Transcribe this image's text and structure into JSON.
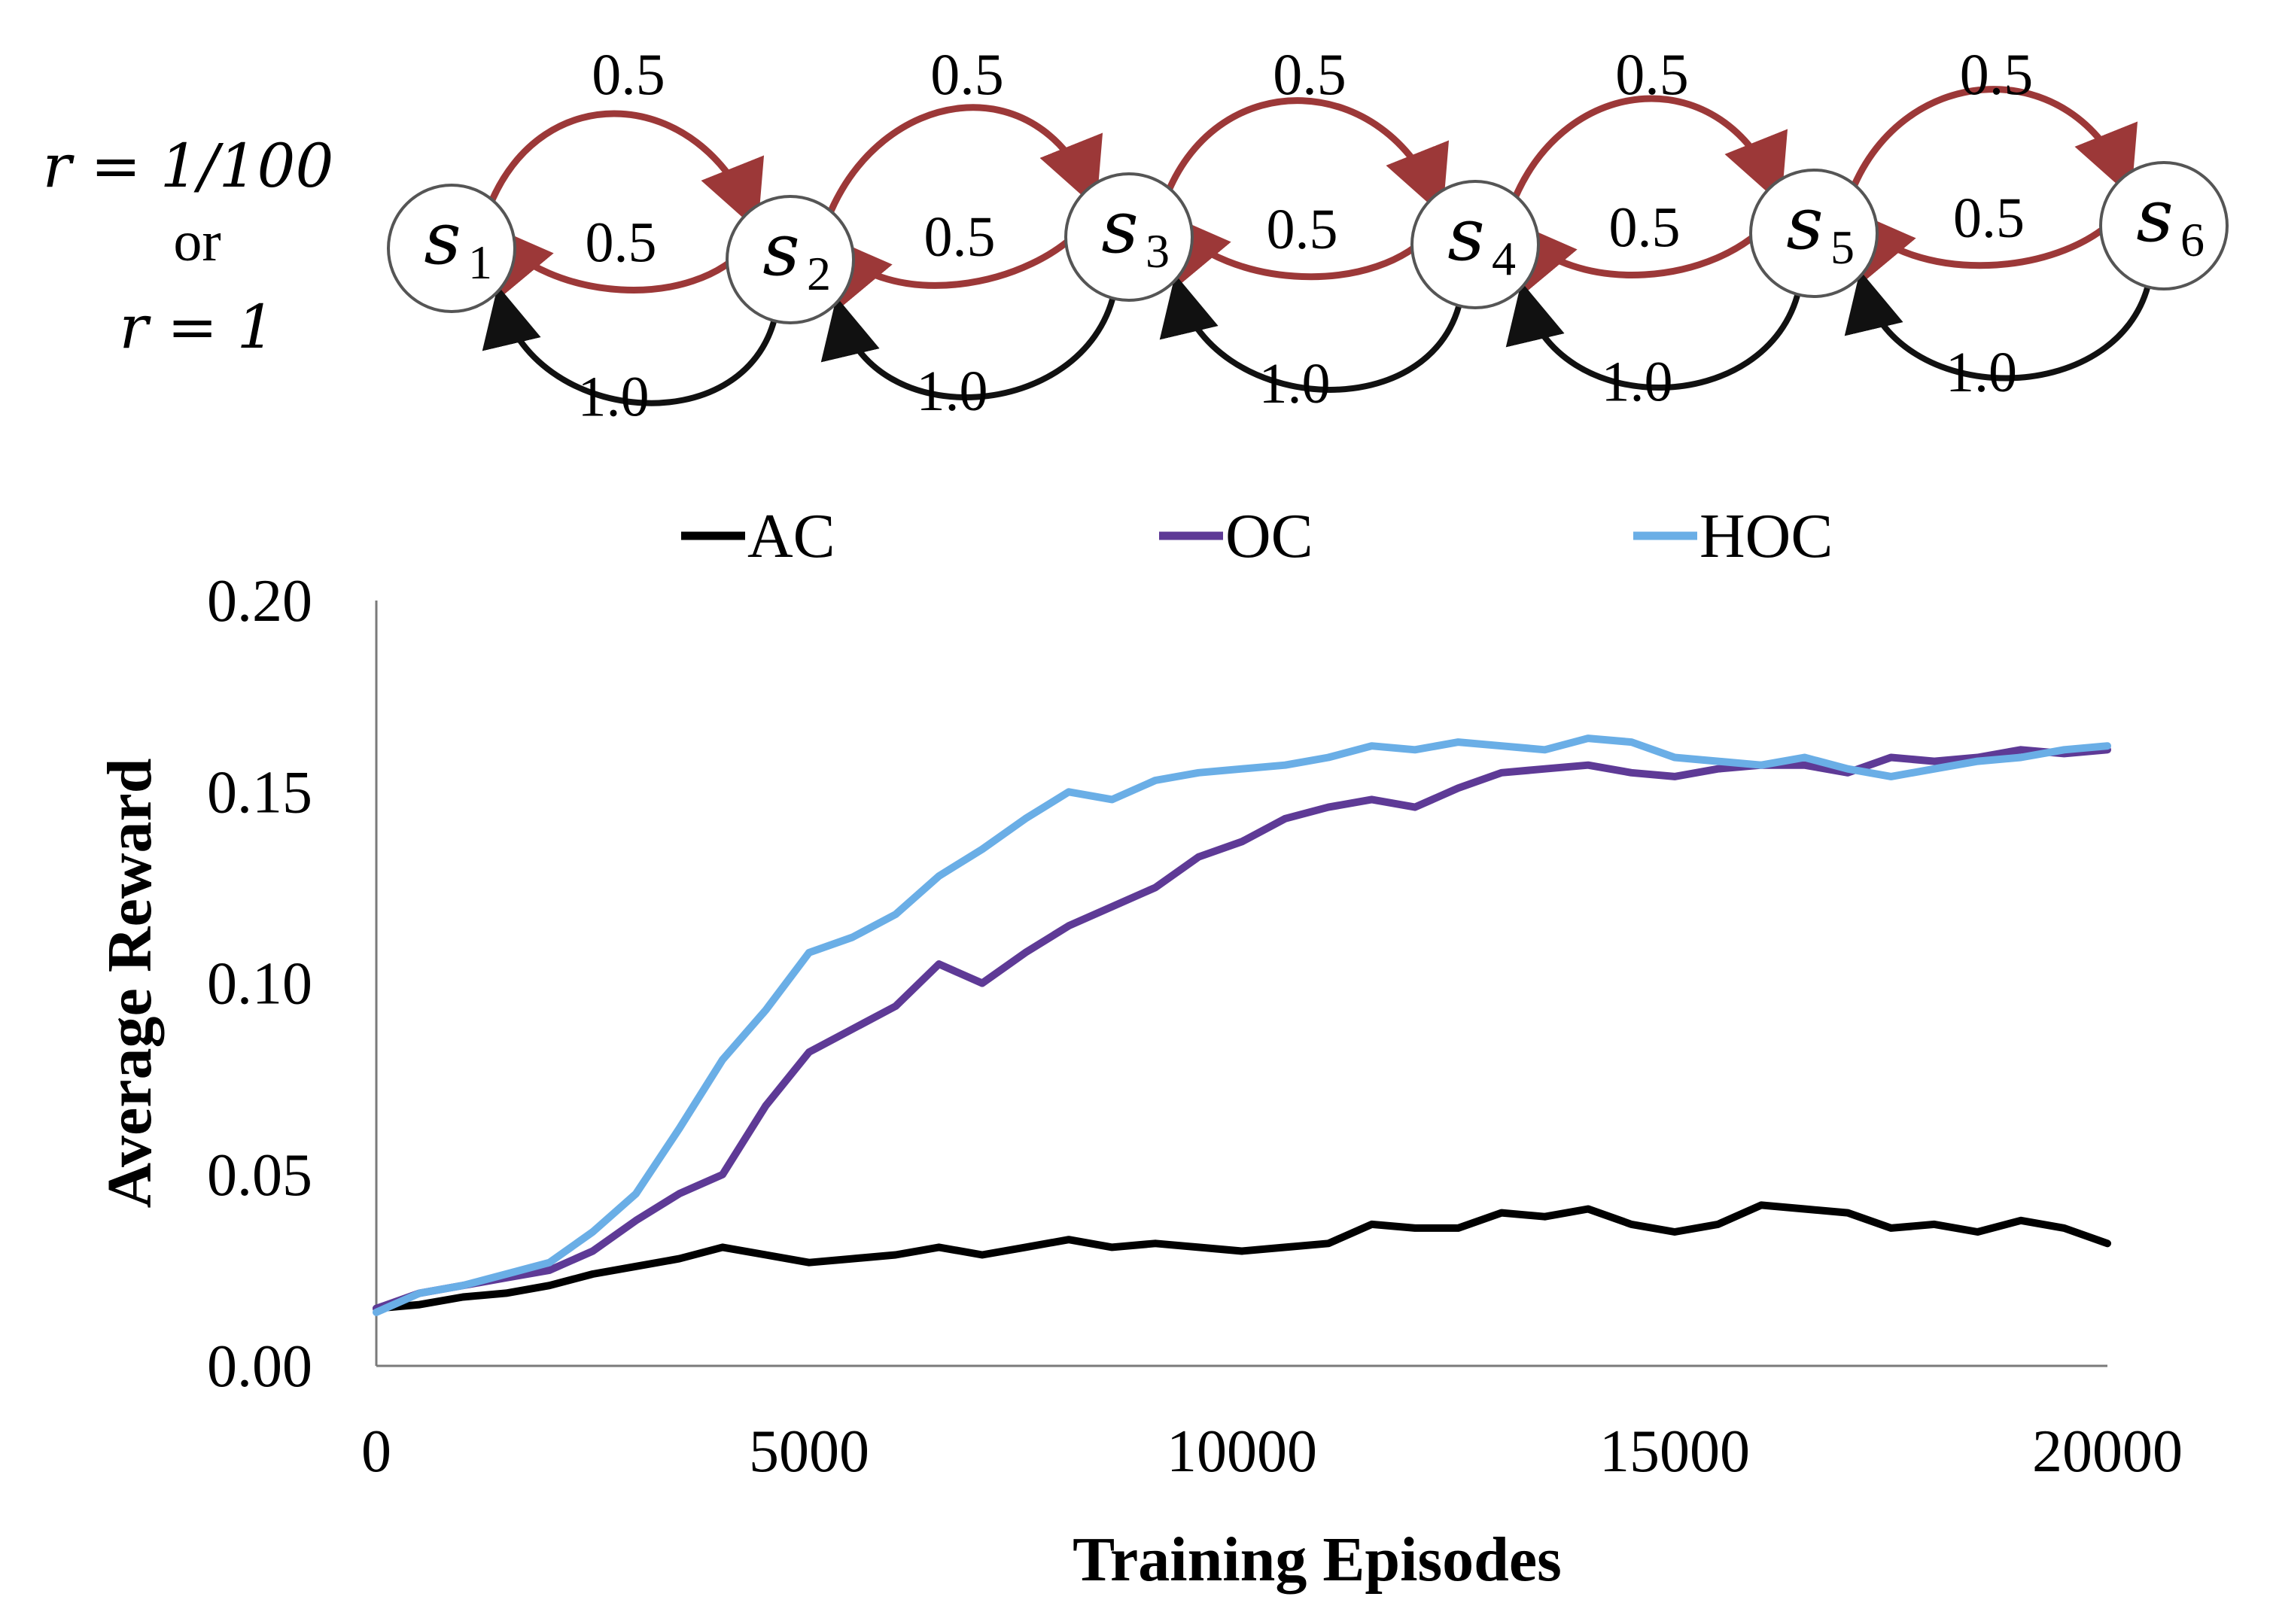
{
  "diagram": {
    "reward_line1": "r = 1/100",
    "reward_or": "or",
    "reward_line2": "r = 1",
    "states": [
      {
        "symbol": "s",
        "sub": "1"
      },
      {
        "symbol": "s",
        "sub": "2"
      },
      {
        "symbol": "s",
        "sub": "3"
      },
      {
        "symbol": "s",
        "sub": "4"
      },
      {
        "symbol": "s",
        "sub": "5"
      },
      {
        "symbol": "s",
        "sub": "6"
      }
    ],
    "forward_prob": "0.5",
    "stay_prob": "0.5",
    "back_prob": "1.0",
    "forward_color": "#9c3838",
    "back_color": "#111111"
  },
  "chart_data": {
    "type": "line",
    "title": "",
    "xlabel": "Training Episodes",
    "ylabel": "Average Reward",
    "xlim": [
      0,
      20000
    ],
    "ylim": [
      0,
      0.2
    ],
    "xticks": [
      "0",
      "5000",
      "10000",
      "15000",
      "20000"
    ],
    "yticks": [
      "0.00",
      "0.05",
      "0.10",
      "0.15",
      "0.20"
    ],
    "grid": false,
    "legend_position": "top",
    "x": [
      0,
      500,
      1000,
      1500,
      2000,
      2500,
      3000,
      3500,
      4000,
      4500,
      5000,
      5500,
      6000,
      6500,
      7000,
      7500,
      8000,
      8500,
      9000,
      9500,
      10000,
      10500,
      11000,
      11500,
      12000,
      12500,
      13000,
      13500,
      14000,
      14500,
      15000,
      15500,
      16000,
      16500,
      17000,
      17500,
      18000,
      18500,
      19000,
      19500,
      20000
    ],
    "series": [
      {
        "name": "AC",
        "color": "#000000",
        "values": [
          0.015,
          0.016,
          0.018,
          0.019,
          0.021,
          0.024,
          0.026,
          0.028,
          0.031,
          0.029,
          0.027,
          0.028,
          0.029,
          0.031,
          0.029,
          0.031,
          0.033,
          0.031,
          0.032,
          0.031,
          0.03,
          0.031,
          0.032,
          0.037,
          0.036,
          0.036,
          0.04,
          0.039,
          0.041,
          0.037,
          0.035,
          0.037,
          0.042,
          0.041,
          0.04,
          0.036,
          0.037,
          0.035,
          0.038,
          0.036,
          0.032
        ]
      },
      {
        "name": "OC",
        "color": "#5e3a96",
        "values": [
          0.015,
          0.019,
          0.021,
          0.023,
          0.025,
          0.03,
          0.038,
          0.045,
          0.05,
          0.068,
          0.082,
          0.088,
          0.094,
          0.105,
          0.1,
          0.108,
          0.115,
          0.12,
          0.125,
          0.133,
          0.137,
          0.143,
          0.146,
          0.148,
          0.146,
          0.151,
          0.155,
          0.156,
          0.157,
          0.155,
          0.154,
          0.156,
          0.157,
          0.157,
          0.155,
          0.159,
          0.158,
          0.159,
          0.161,
          0.16,
          0.161
        ]
      },
      {
        "name": "HOC",
        "color": "#6aaee6",
        "values": [
          0.014,
          0.019,
          0.021,
          0.024,
          0.027,
          0.035,
          0.045,
          0.062,
          0.08,
          0.093,
          0.108,
          0.112,
          0.118,
          0.128,
          0.135,
          0.143,
          0.15,
          0.148,
          0.153,
          0.155,
          0.156,
          0.157,
          0.159,
          0.162,
          0.161,
          0.163,
          0.162,
          0.161,
          0.164,
          0.163,
          0.159,
          0.158,
          0.157,
          0.159,
          0.156,
          0.154,
          0.156,
          0.158,
          0.159,
          0.161,
          0.162
        ]
      }
    ]
  }
}
